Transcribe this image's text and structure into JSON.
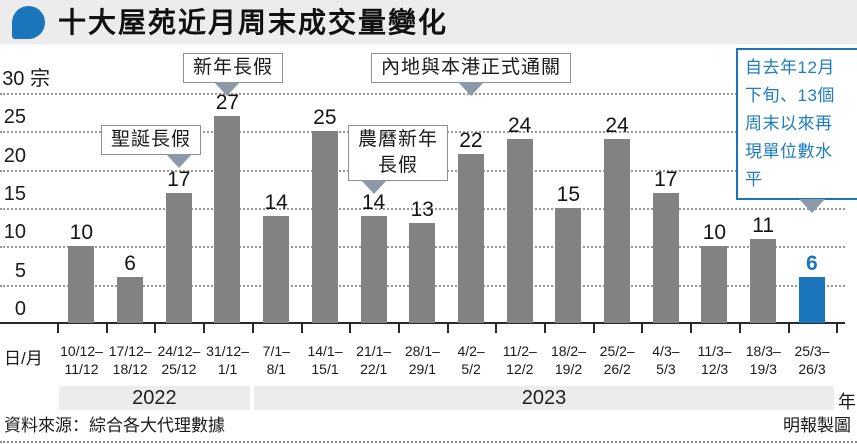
{
  "header": {
    "title": "十大屋苑近月周末成交量變化"
  },
  "chart_data": {
    "type": "bar",
    "title": "十大屋苑近月周末成交量變化",
    "unit": "宗",
    "x_axis_label": "日/月",
    "year_axis_label": "年",
    "ylim": [
      0,
      30
    ],
    "y_ticks": [
      0,
      5,
      10,
      15,
      20,
      25,
      30
    ],
    "grid": "dotted horizontal",
    "categories": [
      [
        "10/12–",
        "11/12"
      ],
      [
        "17/12–",
        "18/12"
      ],
      [
        "24/12–",
        "25/12"
      ],
      [
        "31/12–",
        "1/1"
      ],
      [
        "7/1–",
        "8/1"
      ],
      [
        "14/1–",
        "15/1"
      ],
      [
        "21/1–",
        "22/1"
      ],
      [
        "28/1–",
        "29/1"
      ],
      [
        "4/2–",
        "5/2"
      ],
      [
        "11/2–",
        "12/2"
      ],
      [
        "18/2–",
        "19/2"
      ],
      [
        "25/2–",
        "26/2"
      ],
      [
        "4/3–",
        "5/3"
      ],
      [
        "11/3–",
        "12/3"
      ],
      [
        "18/3–",
        "19/3"
      ],
      [
        "25/3–",
        "26/3"
      ]
    ],
    "values": [
      10,
      6,
      17,
      27,
      14,
      25,
      14,
      13,
      22,
      24,
      15,
      24,
      17,
      10,
      11,
      6
    ],
    "bar_color": "#828282",
    "highlight_color": "#1b75bb",
    "highlight_index": 15,
    "pointer_color": "#8d99a6",
    "year_bands": [
      {
        "label": "2022",
        "from": 0,
        "to": 3
      },
      {
        "label": "2023",
        "from": 4,
        "to": 15
      }
    ],
    "annotations": [
      {
        "id": "xmas",
        "text": "聖誕長假",
        "lines": [
          "聖誕長假"
        ],
        "target_index": 2
      },
      {
        "id": "newyear",
        "text": "新年長假",
        "lines": [
          "新年長假"
        ],
        "target_index": 3
      },
      {
        "id": "lny",
        "text": "農曆新年長假",
        "lines": [
          "農曆新年",
          "長假"
        ],
        "target_index": 6
      },
      {
        "id": "reopen",
        "text": "內地與本港正式通關",
        "lines": [
          "內地與本港正式通關"
        ],
        "target_index": 8
      },
      {
        "id": "note",
        "text": "自去年12月下旬、13個周末以來再現單位數水平",
        "lines": [
          "自去年12月",
          "下旬、13個",
          "周末以來再",
          "現單位數水",
          "平"
        ],
        "target_index": 15
      }
    ]
  },
  "footer": {
    "source": "資料來源：綜合各大代理數據",
    "credit": "明報製圖"
  }
}
